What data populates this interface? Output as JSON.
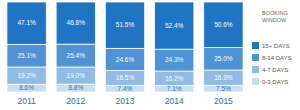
{
  "chart_data": {
    "type": "bar",
    "stacked": true,
    "data_labels": true,
    "tick_labels": "x",
    "legend": "right",
    "legend_title": "BOOKING WINDOW",
    "categories": [
      "2011",
      "2012",
      "2013",
      "2014",
      "2015"
    ],
    "ylim": [
      0,
      100
    ],
    "series": [
      {
        "name": "15+ DAYS",
        "color": "#1f74c4",
        "values": [
          47.1,
          46.8,
          51.5,
          52.4,
          50.6
        ],
        "value_labels": [
          "47.1%",
          "46.8%",
          "51.5%",
          "52.4%",
          "50.6%"
        ]
      },
      {
        "name": "8-14 DAYS",
        "color": "#4f92d6",
        "values": [
          25.1,
          25.4,
          24.6,
          24.3,
          25.0
        ],
        "value_labels": [
          "25.1%",
          "25.4%",
          "24.6%",
          "24.3%",
          "25.0%"
        ]
      },
      {
        "name": "4-7 DAYS",
        "color": "#8fbbe6",
        "values": [
          19.2,
          19.0,
          16.5,
          16.2,
          16.9
        ],
        "value_labels": [
          "19.2%",
          "19.0%",
          "16.5%",
          "16.2%",
          "16.9%"
        ]
      },
      {
        "name": "0-3 DAYS",
        "color": "#c9def2",
        "values": [
          8.6,
          8.8,
          7.4,
          7.1,
          7.5
        ],
        "value_labels": [
          "8.6%",
          "8.8%",
          "7.4%",
          "7.1%",
          "7.5%"
        ]
      }
    ]
  }
}
